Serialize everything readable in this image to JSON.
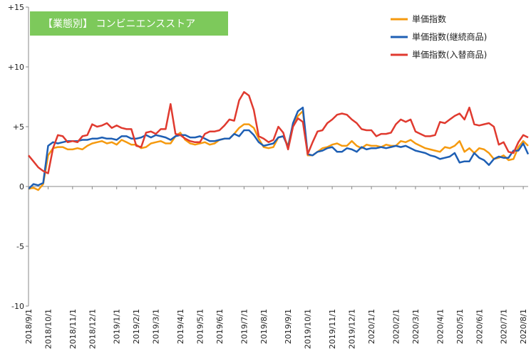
{
  "chart_data": {
    "type": "line",
    "title": "【業態別】 コンビニエンスストア",
    "title_bg": "#7dc95b",
    "ylim": [
      -10,
      15
    ],
    "y_ticks": [
      {
        "v": 15,
        "label": "+15"
      },
      {
        "v": 10,
        "label": "+10"
      },
      {
        "v": 5,
        "label": "+5"
      },
      {
        "v": 0,
        "label": "0"
      },
      {
        "v": -5,
        "label": "-5"
      },
      {
        "v": -10,
        "label": "-10"
      }
    ],
    "x_count": 103,
    "x_ticks": [
      {
        "i": 0,
        "label": "2018/9/1"
      },
      {
        "i": 4,
        "label": "2018/10/1"
      },
      {
        "i": 9,
        "label": "2018/11/1"
      },
      {
        "i": 13,
        "label": "2018/12/1"
      },
      {
        "i": 18,
        "label": "2019/1/1"
      },
      {
        "i": 22,
        "label": "2019/2/1"
      },
      {
        "i": 26,
        "label": "2019/3/1"
      },
      {
        "i": 31,
        "label": "2019/4/1"
      },
      {
        "i": 35,
        "label": "2019/5/1"
      },
      {
        "i": 39,
        "label": "2019/6/1"
      },
      {
        "i": 44,
        "label": "2019/7/1"
      },
      {
        "i": 48,
        "label": "2019/8/1"
      },
      {
        "i": 53,
        "label": "2019/9/1"
      },
      {
        "i": 57,
        "label": "2019/10/1"
      },
      {
        "i": 62,
        "label": "2019/11/1"
      },
      {
        "i": 66,
        "label": "2019/12/1"
      },
      {
        "i": 70,
        "label": "2020/1/1"
      },
      {
        "i": 75,
        "label": "2020/2/1"
      },
      {
        "i": 79,
        "label": "2020/3/1"
      },
      {
        "i": 84,
        "label": "2020/4/1"
      },
      {
        "i": 88,
        "label": "2020/5/1"
      },
      {
        "i": 92,
        "label": "2020/6/1"
      },
      {
        "i": 97,
        "label": "2020/7/1"
      },
      {
        "i": 101,
        "label": "2020/8/1"
      }
    ],
    "grid": false,
    "legend_position": "top-right",
    "series": [
      {
        "name": "単価指数",
        "color": "#f59a0f",
        "values": [
          -0.2,
          -0.1,
          -0.3,
          0.2,
          2.6,
          3.2,
          3.3,
          3.3,
          3.1,
          3.1,
          3.2,
          3.1,
          3.4,
          3.6,
          3.7,
          3.8,
          3.6,
          3.7,
          3.5,
          3.9,
          3.7,
          3.5,
          3.5,
          3.2,
          3.3,
          3.6,
          3.7,
          3.8,
          3.6,
          3.6,
          4.2,
          4.5,
          3.9,
          3.6,
          3.5,
          3.6,
          3.7,
          3.5,
          3.6,
          3.9,
          4.0,
          4.0,
          4.4,
          4.9,
          5.2,
          5.2,
          4.9,
          4.0,
          3.3,
          3.2,
          3.3,
          4.1,
          4.2,
          3.4,
          5.2,
          5.9,
          6.3,
          2.6,
          2.6,
          2.9,
          3.2,
          3.3,
          3.5,
          3.6,
          3.4,
          3.4,
          3.8,
          3.4,
          3.2,
          3.5,
          3.4,
          3.4,
          3.3,
          3.5,
          3.4,
          3.4,
          3.8,
          3.7,
          3.9,
          3.6,
          3.4,
          3.2,
          3.1,
          3.0,
          2.9,
          3.3,
          3.2,
          3.4,
          3.8,
          2.9,
          3.2,
          2.8,
          3.2,
          3.1,
          2.8,
          2.3,
          2.4,
          2.6,
          2.2,
          2.3,
          3.3,
          3.8,
          3.4
        ]
      },
      {
        "name": "単価指数(継続商品)",
        "color": "#1e5fb4",
        "values": [
          -0.2,
          0.2,
          0.1,
          0.3,
          3.4,
          3.7,
          3.6,
          3.7,
          3.8,
          3.8,
          3.8,
          3.9,
          3.9,
          4.0,
          4.0,
          4.1,
          4.0,
          4.0,
          3.9,
          4.2,
          4.2,
          4.0,
          4.0,
          4.1,
          4.3,
          4.1,
          4.3,
          4.2,
          4.1,
          3.9,
          4.2,
          4.3,
          4.3,
          4.1,
          4.1,
          4.2,
          4.0,
          3.8,
          3.8,
          3.9,
          4.0,
          4.0,
          4.4,
          4.2,
          4.7,
          4.7,
          4.3,
          3.7,
          3.4,
          3.5,
          3.6,
          4.1,
          4.2,
          3.3,
          5.3,
          6.3,
          6.6,
          2.7,
          2.6,
          2.9,
          3.0,
          3.2,
          3.3,
          2.9,
          2.9,
          3.2,
          3.1,
          2.9,
          3.3,
          3.1,
          3.2,
          3.2,
          3.3,
          3.2,
          3.3,
          3.4,
          3.3,
          3.4,
          3.2,
          3.0,
          2.9,
          2.8,
          2.6,
          2.5,
          2.3,
          2.4,
          2.5,
          2.8,
          2.0,
          2.1,
          2.1,
          2.8,
          2.4,
          2.2,
          1.8,
          2.3,
          2.5,
          2.4,
          2.4,
          3.0,
          3.0,
          3.6,
          2.7
        ]
      },
      {
        "name": "単価指数(入替商品)",
        "color": "#e03a2f",
        "values": [
          2.6,
          2.1,
          1.6,
          1.3,
          1.1,
          3.2,
          4.3,
          4.2,
          3.7,
          3.8,
          3.7,
          4.2,
          4.3,
          5.2,
          5.0,
          5.1,
          5.3,
          4.9,
          5.1,
          4.9,
          4.8,
          4.8,
          3.4,
          3.3,
          4.5,
          4.6,
          4.4,
          4.8,
          4.8,
          6.9,
          4.4,
          4.3,
          4.0,
          3.8,
          3.7,
          3.7,
          4.4,
          4.6,
          4.6,
          4.7,
          5.1,
          5.6,
          5.5,
          7.2,
          7.9,
          7.6,
          6.4,
          4.2,
          4.0,
          3.7,
          3.9,
          5.0,
          4.5,
          3.1,
          5.0,
          5.7,
          5.4,
          2.7,
          3.7,
          4.6,
          4.7,
          5.3,
          5.6,
          6.0,
          6.1,
          6.0,
          5.6,
          5.3,
          4.8,
          4.7,
          4.7,
          4.2,
          4.4,
          4.4,
          4.5,
          5.2,
          5.6,
          5.4,
          5.6,
          4.6,
          4.4,
          4.2,
          4.2,
          4.3,
          5.4,
          5.3,
          5.6,
          5.9,
          6.1,
          5.6,
          6.6,
          5.2,
          5.1,
          5.2,
          5.3,
          5.0,
          3.5,
          3.7,
          2.9,
          2.8,
          3.7,
          4.3,
          4.1
        ]
      }
    ]
  }
}
